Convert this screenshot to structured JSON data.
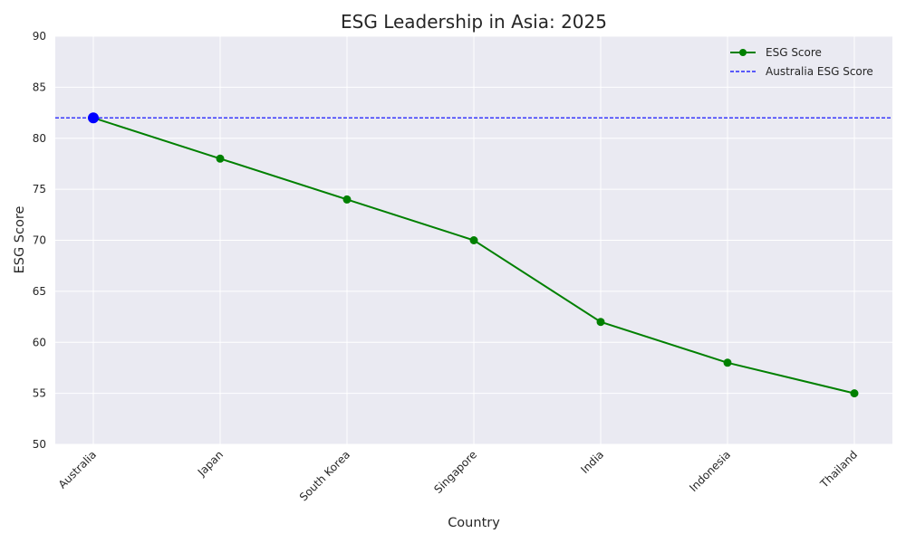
{
  "chart_data": {
    "type": "line",
    "title": "ESG Leadership in Asia: 2025",
    "xlabel": "Country",
    "ylabel": "ESG Score",
    "categories": [
      "Australia",
      "Japan",
      "South Korea",
      "Singapore",
      "India",
      "Indonesia",
      "Thailand"
    ],
    "series": [
      {
        "name": "ESG Score",
        "values": [
          82,
          78,
          74,
          70,
          62,
          58,
          55
        ],
        "color": "#008000"
      }
    ],
    "reference_line": {
      "name": "Australia ESG Score",
      "value": 82,
      "color": "#0000ff",
      "style": "dashed"
    },
    "highlight": {
      "category": "Australia",
      "value": 82,
      "color": "#0000ff"
    },
    "ylim": [
      50,
      90
    ],
    "yticks": [
      50,
      55,
      60,
      65,
      70,
      75,
      80,
      85,
      90
    ],
    "grid": true,
    "legend_position": "top-right",
    "background_color": "#eaeaf2"
  }
}
